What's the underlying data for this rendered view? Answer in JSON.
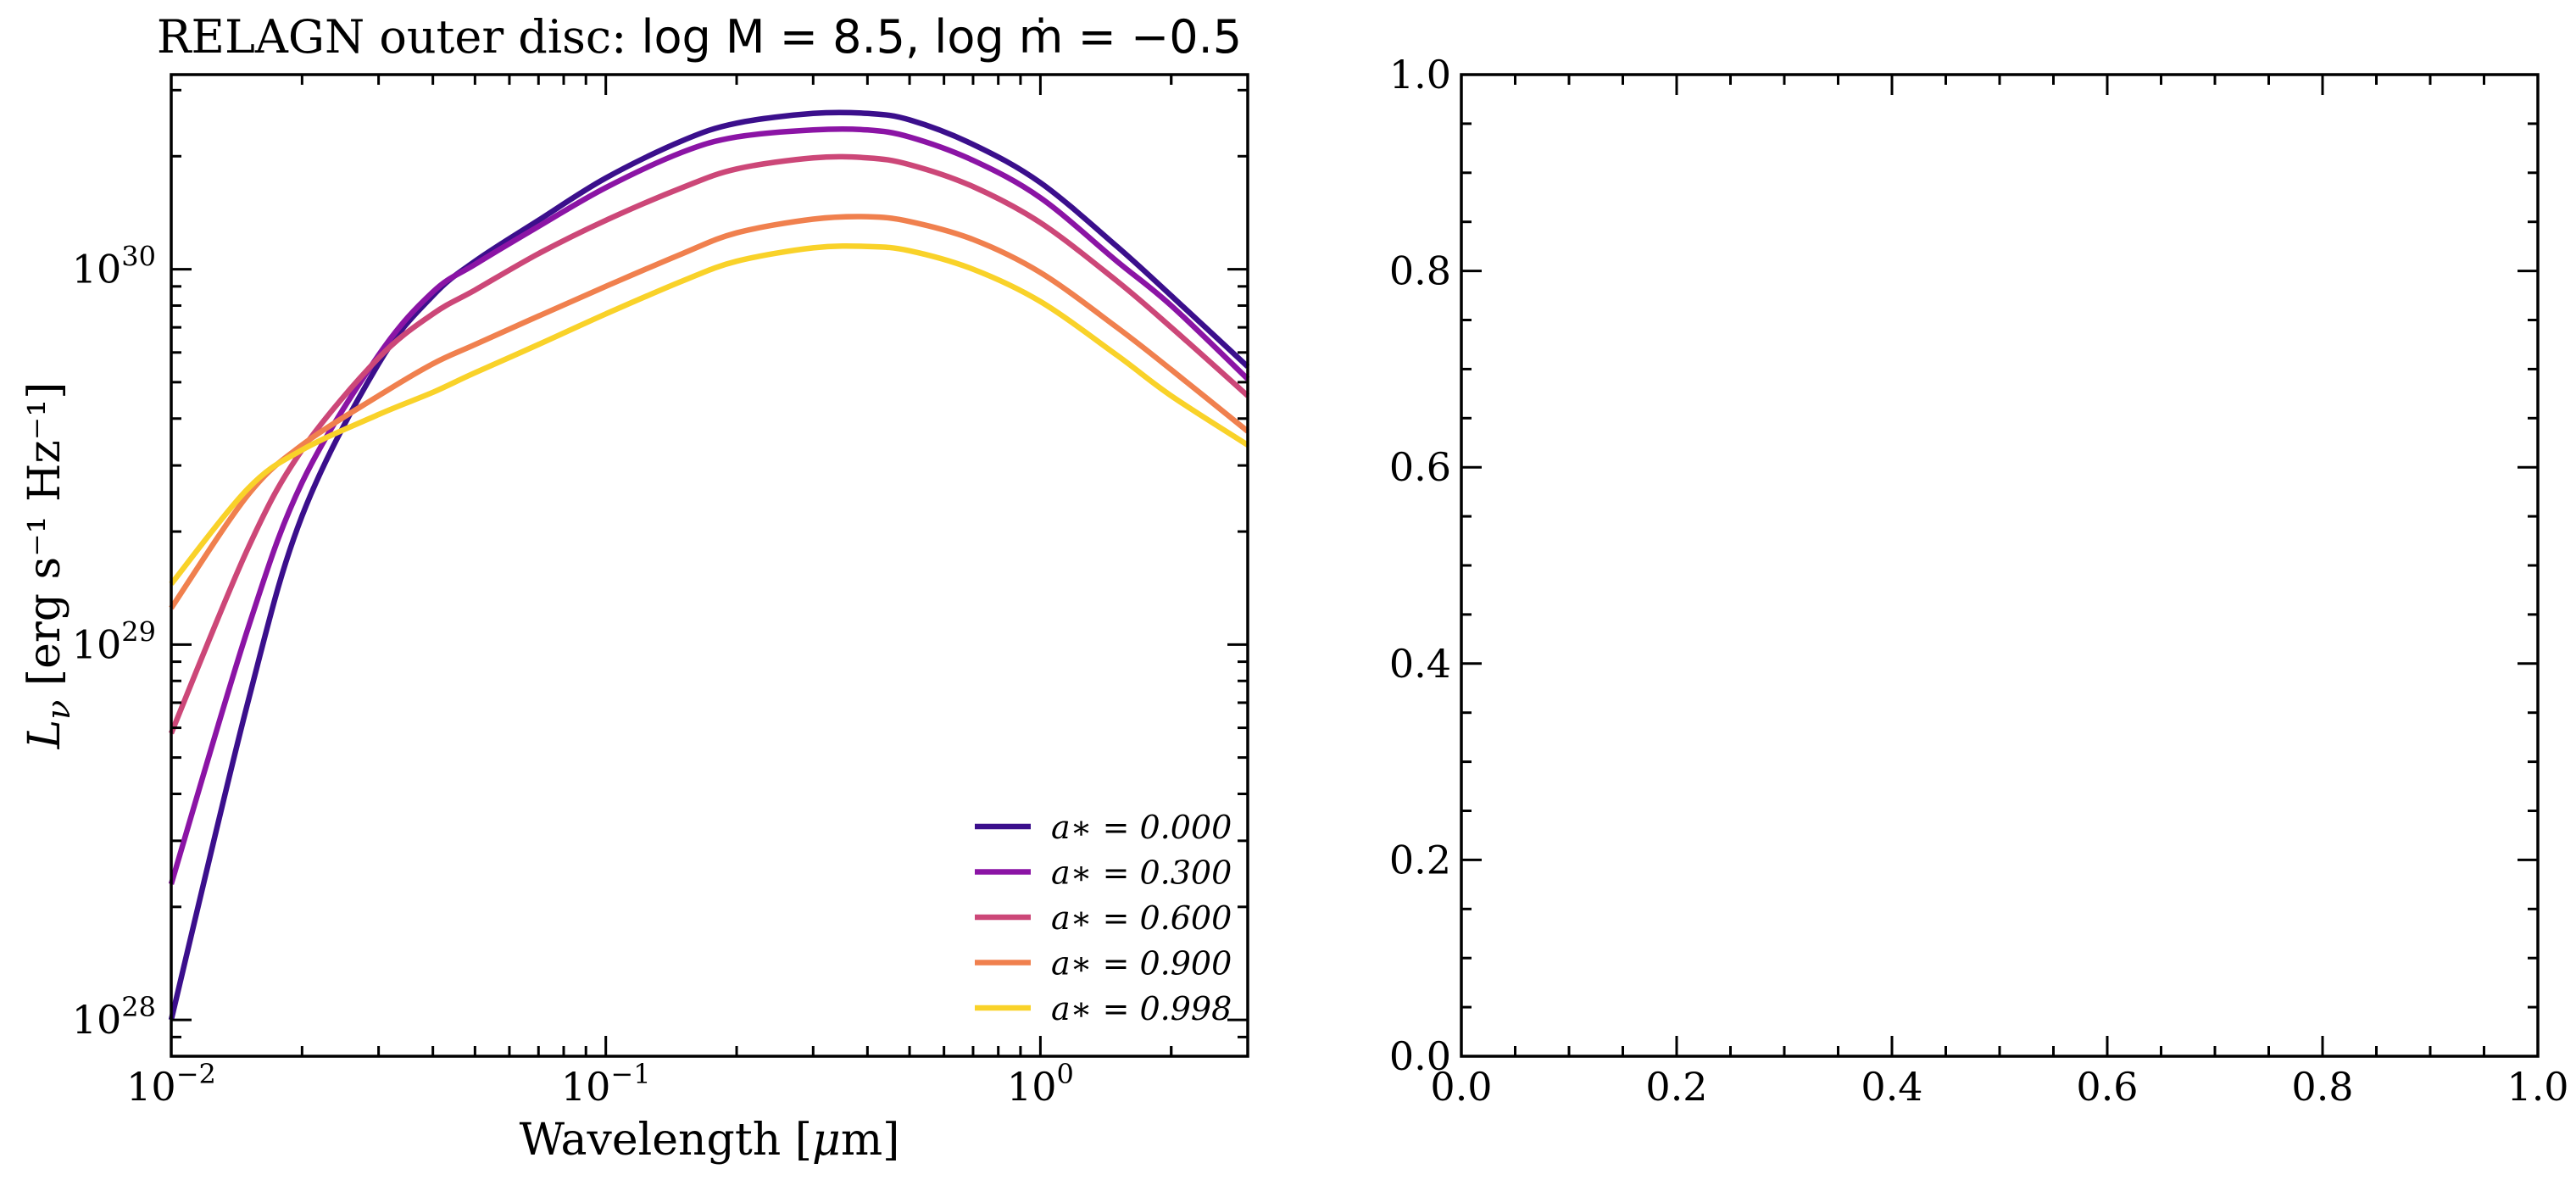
{
  "figure": {
    "title_prefix": "RELAGN outer disc: ",
    "title_math": "log M = 8.5, log ṁ = −0.5",
    "ylabel_main": "L",
    "ylabel_sub": "ν",
    "ylabel_units": " [erg s⁻¹ Hz⁻¹]",
    "xlabel_left": "Wavelength [",
    "xlabel_mu": "μ",
    "xlabel_right": "m]"
  },
  "chart_data": [
    {
      "type": "line",
      "title": "RELAGN outer disc: log M = 8.5, log ṁ = −0.5",
      "xlabel": "Wavelength [μm]",
      "ylabel": "L_ν [erg s⁻¹ Hz⁻¹]",
      "xscale": "log",
      "yscale": "log",
      "xlim": [
        0.01,
        3.0
      ],
      "ylim": [
        8e+27,
        3.3e+30
      ],
      "grid": false,
      "legend": "lower-right",
      "x_ticks": [
        {
          "value": 0.01,
          "base": "10",
          "exp": "−2"
        },
        {
          "value": 0.1,
          "base": "10",
          "exp": "−1"
        },
        {
          "value": 1,
          "base": "10",
          "exp": "0"
        }
      ],
      "y_ticks": [
        {
          "value": 1e+28,
          "base": "10",
          "exp": "28"
        },
        {
          "value": 1e+29,
          "base": "10",
          "exp": "29"
        },
        {
          "value": 1e+30,
          "base": "10",
          "exp": "30"
        }
      ],
      "x": [
        0.01,
        0.015,
        0.02,
        0.03,
        0.04,
        0.05,
        0.07,
        0.1,
        0.15,
        0.2,
        0.3,
        0.4,
        0.5,
        0.7,
        1.0,
        1.5,
        2.0,
        3.0
      ],
      "series": [
        {
          "name": "a* = 0.000",
          "color": "#3b0f8c",
          "values": [
            1e+28,
            7e+28,
            2.2e+29,
            5.6e+29,
            8.5e+29,
            1.05e+30,
            1.35e+30,
            1.75e+30,
            2.2e+30,
            2.45e+30,
            2.6e+30,
            2.6e+30,
            2.5e+30,
            2.15e+30,
            1.7e+30,
            1.15e+30,
            8.5e+29,
            5.5e+29
          ]
        },
        {
          "name": "a* = 0.300",
          "color": "#8b14a5",
          "values": [
            2.3e+28,
            1.1e+29,
            2.7e+29,
            5.9e+29,
            8.7e+29,
            1.03e+30,
            1.3e+30,
            1.65e+30,
            2.05e+30,
            2.25e+30,
            2.35e+30,
            2.35e+30,
            2.25e+30,
            1.95e+30,
            1.55e+30,
            1.05e+30,
            8e+29,
            5.1e+29
          ]
        },
        {
          "name": "a* = 0.600",
          "color": "#cc4778",
          "values": [
            5.8e+28,
            1.8e+29,
            3.3e+29,
            5.8e+29,
            7.6e+29,
            8.8e+29,
            1.1e+30,
            1.35e+30,
            1.65e+30,
            1.85e+30,
            1.98e+30,
            1.98e+30,
            1.9e+30,
            1.66e+30,
            1.33e+30,
            9.3e+29,
            7e+29,
            4.6e+29
          ]
        },
        {
          "name": "a* = 0.900",
          "color": "#f0804e",
          "values": [
            1.25e+29,
            2.5e+29,
            3.4e+29,
            4.6e+29,
            5.6e+29,
            6.3e+29,
            7.5e+29,
            9e+29,
            1.1e+30,
            1.25e+30,
            1.36e+30,
            1.38e+30,
            1.34e+30,
            1.2e+30,
            9.8e+29,
            7e+29,
            5.4e+29,
            3.7e+29
          ]
        },
        {
          "name": "a* = 0.998",
          "color": "#f9d229",
          "values": [
            1.45e+29,
            2.6e+29,
            3.3e+29,
            4.1e+29,
            4.7e+29,
            5.3e+29,
            6.3e+29,
            7.6e+29,
            9.3e+29,
            1.05e+30,
            1.14e+30,
            1.15e+30,
            1.12e+30,
            1e+30,
            8.2e+29,
            5.9e+29,
            4.6e+29,
            3.4e+29
          ]
        }
      ]
    },
    {
      "type": "line",
      "title": "",
      "xlabel": "",
      "ylabel": "",
      "xscale": "linear",
      "yscale": "linear",
      "xlim": [
        0,
        1
      ],
      "ylim": [
        0,
        1
      ],
      "grid": false,
      "x_ticks": [
        "0.0",
        "0.2",
        "0.4",
        "0.6",
        "0.8",
        "1.0"
      ],
      "y_ticks": [
        "0.0",
        "0.2",
        "0.4",
        "0.6",
        "0.8",
        "1.0"
      ],
      "series": []
    }
  ]
}
